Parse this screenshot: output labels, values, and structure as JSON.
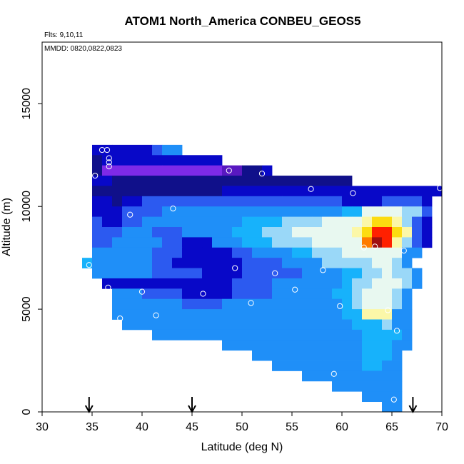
{
  "chart_data": {
    "type": "heatmap",
    "title": "ATOM1 North_America CONBEU_GEOS5",
    "notes": [
      "Flts: 9,10,11",
      "MMDD: 0820,0822,0823"
    ],
    "xlabel": "Latitude (deg N)",
    "ylabel": "Altitude (m)",
    "xlim": [
      30,
      70
    ],
    "ylim": [
      0,
      18000
    ],
    "x_ticks": [
      30,
      35,
      40,
      45,
      50,
      55,
      60,
      65,
      70
    ],
    "y_ticks": [
      0,
      5000,
      10000,
      15000
    ],
    "grid": false,
    "legend": "none",
    "cell_width_deg": 1,
    "cell_height_m": 500,
    "colors": {
      "deep_blue": "#0808c8",
      "mid_blue": "#2c5af0",
      "blue": "#1f8ff8",
      "sky": "#17b2fb",
      "pale_blue": "#9ad8f8",
      "pale": "#e8f8f0",
      "light_yellow": "#fbf7a8",
      "yellow": "#fcdc10",
      "orange": "#ff7c00",
      "red": "#ff2000",
      "dark_red": "#a01010",
      "violet": "#7e2ae8",
      "purple": "#5818c0",
      "navy": "#10108a"
    },
    "rows": [
      {
        "alt": 12500,
        "runs": [
          [
            35,
            37,
            "deep_blue"
          ],
          [
            37,
            41,
            "deep_blue"
          ],
          [
            41,
            42,
            "mid_blue"
          ],
          [
            42,
            44,
            "blue"
          ]
        ]
      },
      {
        "alt": 12000,
        "runs": [
          [
            35,
            36,
            "navy"
          ],
          [
            36,
            44,
            "deep_blue"
          ],
          [
            44,
            48,
            "deep_blue"
          ]
        ]
      },
      {
        "alt": 11500,
        "runs": [
          [
            35,
            36,
            "navy"
          ],
          [
            36,
            42,
            "violet"
          ],
          [
            42,
            48,
            "violet"
          ],
          [
            48,
            50,
            "purple"
          ],
          [
            50,
            52,
            "navy"
          ],
          [
            52,
            53,
            "deep_blue"
          ]
        ]
      },
      {
        "alt": 11000,
        "runs": [
          [
            35,
            37,
            "deep_blue"
          ],
          [
            37,
            50,
            "navy"
          ],
          [
            50,
            53,
            "navy"
          ],
          [
            53,
            61,
            "navy"
          ]
        ]
      },
      {
        "alt": 10500,
        "runs": [
          [
            35,
            37,
            "navy"
          ],
          [
            37,
            48,
            "navy"
          ],
          [
            48,
            61,
            "deep_blue"
          ],
          [
            61,
            70,
            "deep_blue"
          ]
        ]
      },
      {
        "alt": 10000,
        "runs": [
          [
            35,
            37,
            "deep_blue"
          ],
          [
            37,
            38,
            "navy"
          ],
          [
            38,
            40,
            "deep_blue"
          ],
          [
            40,
            54,
            "mid_blue"
          ],
          [
            54,
            60,
            "mid_blue"
          ],
          [
            60,
            63,
            "deep_blue"
          ],
          [
            63,
            64,
            "deep_blue"
          ],
          [
            64,
            68,
            "mid_blue"
          ],
          [
            68,
            69,
            "deep_blue"
          ]
        ]
      },
      {
        "alt": 9500,
        "runs": [
          [
            35,
            37,
            "deep_blue"
          ],
          [
            37,
            38,
            "deep_blue"
          ],
          [
            38,
            42,
            "mid_blue"
          ],
          [
            42,
            55,
            "blue"
          ],
          [
            55,
            60,
            "blue"
          ],
          [
            60,
            61,
            "sky"
          ],
          [
            61,
            62,
            "sky"
          ],
          [
            62,
            66,
            "pale"
          ],
          [
            66,
            68,
            "pale_blue"
          ],
          [
            68,
            69,
            "mid_blue"
          ]
        ]
      },
      {
        "alt": 9000,
        "runs": [
          [
            35,
            36,
            "mid_blue"
          ],
          [
            36,
            38,
            "deep_blue"
          ],
          [
            38,
            40,
            "mid_blue"
          ],
          [
            40,
            50,
            "blue"
          ],
          [
            50,
            54,
            "sky"
          ],
          [
            54,
            57,
            "pale_blue"
          ],
          [
            57,
            58,
            "pale_blue"
          ],
          [
            58,
            61,
            "pale"
          ],
          [
            61,
            62,
            "pale"
          ],
          [
            62,
            63,
            "light_yellow"
          ],
          [
            63,
            65,
            "yellow"
          ],
          [
            65,
            66,
            "light_yellow"
          ],
          [
            66,
            67,
            "pale_blue"
          ],
          [
            67,
            68,
            "mid_blue"
          ],
          [
            68,
            69,
            "deep_blue"
          ]
        ]
      },
      {
        "alt": 8500,
        "runs": [
          [
            35,
            38,
            "mid_blue"
          ],
          [
            38,
            41,
            "blue"
          ],
          [
            41,
            44,
            "mid_blue"
          ],
          [
            44,
            49,
            "blue"
          ],
          [
            49,
            52,
            "sky"
          ],
          [
            52,
            55,
            "pale_blue"
          ],
          [
            55,
            57,
            "pale"
          ],
          [
            57,
            61,
            "pale"
          ],
          [
            61,
            62,
            "light_yellow"
          ],
          [
            62,
            63,
            "yellow"
          ],
          [
            63,
            64,
            "red"
          ],
          [
            64,
            65,
            "red"
          ],
          [
            65,
            66,
            "yellow"
          ],
          [
            66,
            67,
            "light_yellow"
          ],
          [
            67,
            68,
            "mid_blue"
          ],
          [
            68,
            69,
            "deep_blue"
          ]
        ]
      },
      {
        "alt": 8000,
        "runs": [
          [
            35,
            37,
            "mid_blue"
          ],
          [
            37,
            42,
            "blue"
          ],
          [
            42,
            44,
            "mid_blue"
          ],
          [
            44,
            47,
            "deep_blue"
          ],
          [
            47,
            50,
            "blue"
          ],
          [
            50,
            53,
            "sky"
          ],
          [
            53,
            55,
            "pale_blue"
          ],
          [
            55,
            57,
            "pale_blue"
          ],
          [
            57,
            62,
            "pale"
          ],
          [
            62,
            63,
            "orange"
          ],
          [
            63,
            64,
            "dark_red"
          ],
          [
            64,
            65,
            "red"
          ],
          [
            65,
            66,
            "light_yellow"
          ],
          [
            66,
            67,
            "pale_blue"
          ],
          [
            67,
            68,
            "mid_blue"
          ],
          [
            68,
            69,
            "deep_blue"
          ]
        ]
      },
      {
        "alt": 7500,
        "runs": [
          [
            35,
            36,
            "blue"
          ],
          [
            36,
            41,
            "blue"
          ],
          [
            41,
            44,
            "mid_blue"
          ],
          [
            44,
            46,
            "deep_blue"
          ],
          [
            46,
            49,
            "deep_blue"
          ],
          [
            49,
            51,
            "mid_blue"
          ],
          [
            51,
            55,
            "blue"
          ],
          [
            55,
            57,
            "sky"
          ],
          [
            57,
            60,
            "pale_blue"
          ],
          [
            60,
            64,
            "pale"
          ],
          [
            64,
            66,
            "pale"
          ],
          [
            66,
            68,
            "blue"
          ]
        ]
      },
      {
        "alt": 7000,
        "runs": [
          [
            34,
            35,
            "sky"
          ],
          [
            35,
            41,
            "blue"
          ],
          [
            41,
            43,
            "mid_blue"
          ],
          [
            43,
            48,
            "deep_blue"
          ],
          [
            48,
            50,
            "deep_blue"
          ],
          [
            50,
            54,
            "mid_blue"
          ],
          [
            54,
            58,
            "blue"
          ],
          [
            58,
            61,
            "pale_blue"
          ],
          [
            61,
            63,
            "pale_blue"
          ],
          [
            63,
            65,
            "pale"
          ],
          [
            65,
            66,
            "pale_blue"
          ],
          [
            66,
            67,
            "blue"
          ]
        ]
      },
      {
        "alt": 6500,
        "runs": [
          [
            35,
            41,
            "blue"
          ],
          [
            41,
            46,
            "mid_blue"
          ],
          [
            46,
            50,
            "deep_blue"
          ],
          [
            50,
            53,
            "mid_blue"
          ],
          [
            53,
            56,
            "mid_blue"
          ],
          [
            56,
            58,
            "blue"
          ],
          [
            58,
            60,
            "blue"
          ],
          [
            60,
            62,
            "sky"
          ],
          [
            62,
            64,
            "pale_blue"
          ],
          [
            64,
            65,
            "pale"
          ],
          [
            65,
            67,
            "pale_blue"
          ],
          [
            67,
            68,
            "blue"
          ]
        ]
      },
      {
        "alt": 6000,
        "runs": [
          [
            36,
            40,
            "deep_blue"
          ],
          [
            40,
            49,
            "deep_blue"
          ],
          [
            49,
            53,
            "mid_blue"
          ],
          [
            53,
            58,
            "blue"
          ],
          [
            58,
            60,
            "blue"
          ],
          [
            60,
            61,
            "sky"
          ],
          [
            61,
            63,
            "pale_blue"
          ],
          [
            63,
            66,
            "pale"
          ],
          [
            66,
            67,
            "pale_blue"
          ],
          [
            67,
            68,
            "blue"
          ]
        ]
      },
      {
        "alt": 5500,
        "runs": [
          [
            37,
            40,
            "blue"
          ],
          [
            40,
            44,
            "mid_blue"
          ],
          [
            44,
            49,
            "deep_blue"
          ],
          [
            49,
            53,
            "mid_blue"
          ],
          [
            53,
            57,
            "blue"
          ],
          [
            57,
            59,
            "blue"
          ],
          [
            59,
            61,
            "sky"
          ],
          [
            61,
            62,
            "pale_blue"
          ],
          [
            62,
            65,
            "pale"
          ],
          [
            65,
            66,
            "pale_blue"
          ],
          [
            66,
            67,
            "blue"
          ]
        ]
      },
      {
        "alt": 5000,
        "runs": [
          [
            37,
            44,
            "blue"
          ],
          [
            44,
            48,
            "mid_blue"
          ],
          [
            48,
            53,
            "blue"
          ],
          [
            53,
            57,
            "blue"
          ],
          [
            57,
            60,
            "blue"
          ],
          [
            60,
            61,
            "sky"
          ],
          [
            61,
            62,
            "pale_blue"
          ],
          [
            62,
            65,
            "pale"
          ],
          [
            65,
            66,
            "pale_blue"
          ],
          [
            66,
            67,
            "blue"
          ]
        ]
      },
      {
        "alt": 4500,
        "runs": [
          [
            37,
            46,
            "blue"
          ],
          [
            46,
            52,
            "blue"
          ],
          [
            52,
            57,
            "blue"
          ],
          [
            57,
            60,
            "blue"
          ],
          [
            60,
            62,
            "sky"
          ],
          [
            62,
            64,
            "light_yellow"
          ],
          [
            64,
            65,
            "light_yellow"
          ],
          [
            65,
            67,
            "blue"
          ]
        ]
      },
      {
        "alt": 4000,
        "runs": [
          [
            38,
            42,
            "blue"
          ],
          [
            42,
            56,
            "blue"
          ],
          [
            56,
            61,
            "blue"
          ],
          [
            61,
            64,
            "sky"
          ],
          [
            64,
            65,
            "pale_blue"
          ],
          [
            65,
            67,
            "blue"
          ]
        ]
      },
      {
        "alt": 3500,
        "runs": [
          [
            41,
            48,
            "blue"
          ],
          [
            48,
            56,
            "blue"
          ],
          [
            56,
            62,
            "blue"
          ],
          [
            62,
            65,
            "sky"
          ],
          [
            65,
            66,
            "sky"
          ],
          [
            66,
            67,
            "blue"
          ]
        ]
      },
      {
        "alt": 3000,
        "runs": [
          [
            48,
            55,
            "blue"
          ],
          [
            55,
            62,
            "blue"
          ],
          [
            62,
            65,
            "sky"
          ],
          [
            65,
            67,
            "blue"
          ]
        ]
      },
      {
        "alt": 2500,
        "runs": [
          [
            51,
            59,
            "blue"
          ],
          [
            59,
            62,
            "blue"
          ],
          [
            62,
            65,
            "sky"
          ],
          [
            65,
            66,
            "blue"
          ]
        ]
      },
      {
        "alt": 2000,
        "runs": [
          [
            53,
            58,
            "blue"
          ],
          [
            58,
            62,
            "blue"
          ],
          [
            62,
            64,
            "sky"
          ],
          [
            64,
            66,
            "blue"
          ]
        ]
      },
      {
        "alt": 1500,
        "runs": [
          [
            56,
            62,
            "blue"
          ],
          [
            62,
            65,
            "blue"
          ],
          [
            65,
            66,
            "blue"
          ]
        ]
      },
      {
        "alt": 1000,
        "runs": [
          [
            59,
            62,
            "blue"
          ],
          [
            62,
            65,
            "blue"
          ],
          [
            65,
            66,
            "blue"
          ]
        ]
      },
      {
        "alt": 500,
        "runs": [
          [
            62,
            64,
            "blue"
          ],
          [
            64,
            66,
            "blue"
          ]
        ]
      },
      {
        "alt": 0,
        "runs": [
          [
            64,
            66,
            "blue"
          ]
        ]
      }
    ],
    "points": [
      {
        "lat": 36.0,
        "alt": 12750
      },
      {
        "lat": 36.5,
        "alt": 12750
      },
      {
        "lat": 36.7,
        "alt": 12350
      },
      {
        "lat": 36.7,
        "alt": 12150
      },
      {
        "lat": 36.7,
        "alt": 11950
      },
      {
        "lat": 35.3,
        "alt": 11500
      },
      {
        "lat": 48.7,
        "alt": 11750
      },
      {
        "lat": 52.0,
        "alt": 11600
      },
      {
        "lat": 56.9,
        "alt": 10850
      },
      {
        "lat": 61.1,
        "alt": 10650
      },
      {
        "lat": 69.8,
        "alt": 10900
      },
      {
        "lat": 43.1,
        "alt": 9900
      },
      {
        "lat": 38.8,
        "alt": 9600
      },
      {
        "lat": 62.2,
        "alt": 8000
      },
      {
        "lat": 63.3,
        "alt": 8050
      },
      {
        "lat": 66.2,
        "alt": 7850
      },
      {
        "lat": 34.7,
        "alt": 7150
      },
      {
        "lat": 49.3,
        "alt": 7000
      },
      {
        "lat": 53.3,
        "alt": 6750
      },
      {
        "lat": 58.1,
        "alt": 6900
      },
      {
        "lat": 36.6,
        "alt": 6050
      },
      {
        "lat": 40.0,
        "alt": 5850
      },
      {
        "lat": 46.1,
        "alt": 5750
      },
      {
        "lat": 55.3,
        "alt": 5950
      },
      {
        "lat": 50.9,
        "alt": 5300
      },
      {
        "lat": 59.8,
        "alt": 5150
      },
      {
        "lat": 64.6,
        "alt": 4950
      },
      {
        "lat": 41.4,
        "alt": 4700
      },
      {
        "lat": 37.8,
        "alt": 4550
      },
      {
        "lat": 65.5,
        "alt": 3950
      },
      {
        "lat": 59.2,
        "alt": 1850
      },
      {
        "lat": 65.2,
        "alt": 600
      }
    ],
    "arrow_lats": [
      34.7,
      45.0,
      67.1
    ]
  }
}
